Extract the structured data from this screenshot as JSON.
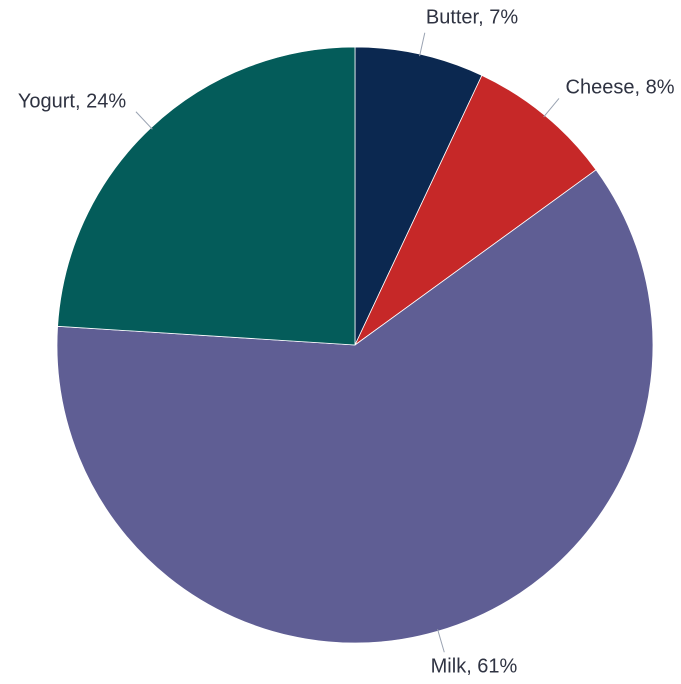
{
  "chart_data": {
    "type": "pie",
    "title": "",
    "start_angle_deg": 0,
    "direction": "clockwise",
    "slices": [
      {
        "label": "Butter",
        "value": 7,
        "display": "Butter, 7%",
        "color": "#0b2850"
      },
      {
        "label": "Cheese",
        "value": 8,
        "display": "Cheese, 8%",
        "color": "#c62828"
      },
      {
        "label": "Milk",
        "value": 61,
        "display": "Milk, 61%",
        "color": "#5f5e94"
      },
      {
        "label": "Yogurt",
        "value": 24,
        "display": "Yogurt, 24%",
        "color": "#045c5a"
      }
    ],
    "legend": "none",
    "data_labels": "outside-with-leader-lines"
  }
}
